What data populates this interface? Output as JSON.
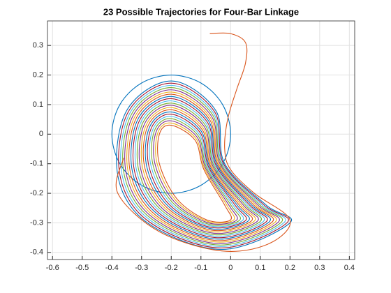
{
  "chart_data": {
    "type": "line",
    "title": "23 Possible Trajectories for Four-Bar Linkage",
    "xlim": [
      -0.617,
      0.418
    ],
    "ylim": [
      -0.424,
      0.383
    ],
    "xticks": [
      -0.6,
      -0.5,
      -0.4,
      -0.3,
      -0.2,
      -0.1,
      0,
      0.1,
      0.2,
      0.3,
      0.4
    ],
    "yticks": [
      -0.4,
      -0.3,
      -0.2,
      -0.1,
      0,
      0.1,
      0.2,
      0.3
    ],
    "grid": true,
    "series": [
      {
        "color": "#0072BD",
        "x": [
          -0.2,
          -0.1,
          -0.027,
          0,
          -0.027,
          -0.1,
          -0.2,
          -0.3,
          -0.373,
          -0.4,
          -0.373,
          -0.3,
          -0.2
        ],
        "values": [
          0.2,
          0.173,
          0.1,
          0,
          -0.1,
          -0.173,
          -0.2,
          -0.173,
          -0.1,
          0,
          0.1,
          0.173,
          0.2
        ]
      },
      {
        "color": "#D95319",
        "x": [
          -0.2,
          -0.12,
          -0.09,
          -0.02,
          0,
          -0.08,
          -0.18,
          -0.24,
          -0.24,
          -0.2
        ],
        "values": [
          0.03,
          -0.02,
          -0.12,
          -0.24,
          -0.29,
          -0.29,
          -0.22,
          -0.1,
          0,
          0.03
        ]
      },
      {
        "color": "#EDB120",
        "x": [
          -0.2,
          -0.1165,
          -0.0865,
          -0.013,
          0.01,
          -0.0775,
          -0.185,
          -0.247,
          -0.2455,
          -0.2
        ],
        "values": [
          0.0375,
          -0.015,
          -0.119,
          -0.24,
          -0.2905,
          -0.295,
          -0.224,
          -0.102,
          0.004,
          0.0375
        ]
      },
      {
        "color": "#7E2F8E",
        "x": [
          -0.2,
          -0.113,
          -0.083,
          -0.006,
          0.02,
          -0.075,
          -0.19,
          -0.254,
          -0.251,
          -0.2
        ],
        "values": [
          0.045,
          -0.01,
          -0.118,
          -0.24,
          -0.291,
          -0.3,
          -0.228,
          -0.104,
          0.008,
          0.045
        ]
      },
      {
        "color": "#77AC30",
        "x": [
          -0.2,
          -0.1095,
          -0.0795,
          0.001,
          0.03,
          -0.0725,
          -0.195,
          -0.261,
          -0.2565,
          -0.2
        ],
        "values": [
          0.0525,
          -0.005,
          -0.117,
          -0.24,
          -0.2915,
          -0.305,
          -0.232,
          -0.106,
          0.012,
          0.0525
        ]
      },
      {
        "color": "#4DBEEE",
        "x": [
          -0.2,
          -0.106,
          -0.076,
          0.008,
          0.04,
          -0.07,
          -0.2,
          -0.268,
          -0.262,
          -0.2
        ],
        "values": [
          0.06,
          0,
          -0.116,
          -0.24,
          -0.292,
          -0.31,
          -0.236,
          -0.108,
          0.016,
          0.06
        ]
      },
      {
        "color": "#A2142F",
        "x": [
          -0.2,
          -0.1025,
          -0.0725,
          0.015,
          0.05,
          -0.0675,
          -0.205,
          -0.275,
          -0.2675,
          -0.2
        ],
        "values": [
          0.0675,
          0.005,
          -0.115,
          -0.24,
          -0.2925,
          -0.315,
          -0.24,
          -0.11,
          0.02,
          0.0675
        ]
      },
      {
        "color": "#0072BD",
        "x": [
          -0.2,
          -0.099,
          -0.069,
          0.022,
          0.06,
          -0.065,
          -0.21,
          -0.282,
          -0.273,
          -0.2
        ],
        "values": [
          0.075,
          0.01,
          -0.114,
          -0.24,
          -0.293,
          -0.32,
          -0.244,
          -0.112,
          0.024,
          0.075
        ]
      },
      {
        "color": "#D95319",
        "x": [
          -0.2,
          -0.0955,
          -0.0655,
          0.029,
          0.07,
          -0.0625,
          -0.215,
          -0.289,
          -0.2785,
          -0.2
        ],
        "values": [
          0.0825,
          0.015,
          -0.113,
          -0.24,
          -0.2935,
          -0.325,
          -0.248,
          -0.114,
          0.028,
          0.0825
        ]
      },
      {
        "color": "#EDB120",
        "x": [
          -0.2,
          -0.092,
          -0.062,
          0.036,
          0.08,
          -0.06,
          -0.22,
          -0.296,
          -0.284,
          -0.2
        ],
        "values": [
          0.09,
          0.02,
          -0.112,
          -0.24,
          -0.294,
          -0.33,
          -0.252,
          -0.116,
          0.032,
          0.09
        ]
      },
      {
        "color": "#7E2F8E",
        "x": [
          -0.2,
          -0.0885,
          -0.0585,
          0.043,
          0.09,
          -0.0575,
          -0.225,
          -0.303,
          -0.2895,
          -0.2
        ],
        "values": [
          0.0975,
          0.025,
          -0.111,
          -0.24,
          -0.2945,
          -0.335,
          -0.256,
          -0.118,
          0.036,
          0.0975
        ]
      },
      {
        "color": "#77AC30",
        "x": [
          -0.2,
          -0.085,
          -0.055,
          0.05,
          0.1,
          -0.055,
          -0.23,
          -0.31,
          -0.295,
          -0.2
        ],
        "values": [
          0.105,
          0.03,
          -0.11,
          -0.24,
          -0.295,
          -0.34,
          -0.26,
          -0.12,
          0.04,
          0.105
        ]
      },
      {
        "color": "#4DBEEE",
        "x": [
          -0.2,
          -0.0815,
          -0.0515,
          0.057,
          0.11,
          -0.0525,
          -0.235,
          -0.317,
          -0.3005,
          -0.2
        ],
        "values": [
          0.1125,
          0.035,
          -0.109,
          -0.24,
          -0.2955,
          -0.345,
          -0.264,
          -0.122,
          0.044,
          0.1125
        ]
      },
      {
        "color": "#A2142F",
        "x": [
          -0.2,
          -0.078,
          -0.048,
          0.064,
          0.12,
          -0.05,
          -0.24,
          -0.324,
          -0.306,
          -0.2
        ],
        "values": [
          0.12,
          0.04,
          -0.108,
          -0.24,
          -0.296,
          -0.35,
          -0.268,
          -0.124,
          0.048,
          0.12
        ]
      },
      {
        "color": "#0072BD",
        "x": [
          -0.2,
          -0.0745,
          -0.0445,
          0.071,
          0.13,
          -0.0475,
          -0.245,
          -0.331,
          -0.3115,
          -0.2
        ],
        "values": [
          0.1275,
          0.045,
          -0.107,
          -0.24,
          -0.2965,
          -0.355,
          -0.272,
          -0.126,
          0.052,
          0.1275
        ]
      },
      {
        "color": "#D95319",
        "x": [
          -0.2,
          -0.071,
          -0.041,
          0.078,
          0.14,
          -0.045,
          -0.25,
          -0.338,
          -0.317,
          -0.2
        ],
        "values": [
          0.135,
          0.05,
          -0.106,
          -0.24,
          -0.297,
          -0.36,
          -0.276,
          -0.128,
          0.056,
          0.135
        ]
      },
      {
        "color": "#EDB120",
        "x": [
          -0.2,
          -0.0675,
          -0.0375,
          0.085,
          0.15,
          -0.0425,
          -0.255,
          -0.345,
          -0.3225,
          -0.2
        ],
        "values": [
          0.1425,
          0.055,
          -0.105,
          -0.24,
          -0.2975,
          -0.365,
          -0.28,
          -0.13,
          0.06,
          0.1425
        ]
      },
      {
        "color": "#7E2F8E",
        "x": [
          -0.2,
          -0.064,
          -0.034,
          0.092,
          0.16,
          -0.04,
          -0.26,
          -0.352,
          -0.328,
          -0.2
        ],
        "values": [
          0.15,
          0.06,
          -0.104,
          -0.24,
          -0.298,
          -0.37,
          -0.284,
          -0.132,
          0.064,
          0.15
        ]
      },
      {
        "color": "#77AC30",
        "x": [
          -0.2,
          -0.0605,
          -0.0305,
          0.099,
          0.17,
          -0.0375,
          -0.265,
          -0.359,
          -0.3335,
          -0.2
        ],
        "values": [
          0.1575,
          0.065,
          -0.103,
          -0.24,
          -0.2985,
          -0.375,
          -0.288,
          -0.134,
          0.068,
          0.1575
        ]
      },
      {
        "color": "#4DBEEE",
        "x": [
          -0.2,
          -0.057,
          -0.027,
          0.106,
          0.18,
          -0.035,
          -0.27,
          -0.366,
          -0.339,
          -0.2
        ],
        "values": [
          0.165,
          0.07,
          -0.102,
          -0.24,
          -0.299,
          -0.38,
          -0.292,
          -0.136,
          0.072,
          0.165
        ]
      },
      {
        "color": "#A2142F",
        "x": [
          -0.2,
          -0.0535,
          -0.0235,
          0.113,
          0.19,
          -0.0325,
          -0.275,
          -0.373,
          -0.3445,
          -0.2
        ],
        "values": [
          0.1725,
          0.075,
          -0.101,
          -0.24,
          -0.2995,
          -0.385,
          -0.296,
          -0.138,
          0.076,
          0.1725
        ]
      },
      {
        "color": "#0072BD",
        "x": [
          -0.2,
          -0.05,
          -0.02,
          0.12,
          0.2,
          -0.03,
          -0.28,
          -0.38,
          -0.35,
          -0.2
        ],
        "values": [
          0.18,
          0.08,
          -0.1,
          -0.24,
          -0.3,
          -0.39,
          -0.3,
          -0.14,
          0.08,
          0.18
        ]
      },
      {
        "color": "#D95319",
        "x": [
          -0.07,
          0,
          0.05,
          0.05,
          0.02,
          -0.01,
          -0.02,
          0,
          0.08,
          0.2,
          0.13,
          -0.03,
          -0.24,
          -0.38,
          -0.36
        ],
        "values": [
          0.34,
          0.34,
          0.31,
          0.24,
          0.15,
          0.05,
          -0.05,
          -0.12,
          -0.2,
          -0.29,
          -0.37,
          -0.395,
          -0.33,
          -0.2,
          -0.08
        ]
      }
    ]
  }
}
